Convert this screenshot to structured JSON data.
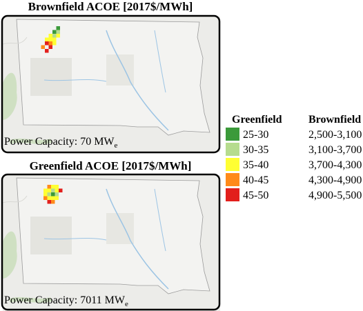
{
  "panels": [
    {
      "title": "Brownfield ACOE [2017$/MWh]",
      "capacity": {
        "label": "Power Capacity: 70 MW",
        "subscript": "e"
      }
    },
    {
      "title": "Greenfield ACOE [2017$/MWh]",
      "capacity": {
        "label": "Power Capacity: 7011 MW",
        "subscript": "e"
      }
    }
  ],
  "legend": {
    "headers": [
      "Greenfield",
      "Brownfield"
    ],
    "rows": [
      {
        "color": "#3b9a3a",
        "greenfield": "25-30",
        "brownfield": "2,500-3,100"
      },
      {
        "color": "#b6dc8e",
        "greenfield": "30-35",
        "brownfield": "3,100-3,700"
      },
      {
        "color": "#ffff33",
        "greenfield": "35-40",
        "brownfield": "3,700-4,300"
      },
      {
        "color": "#ff8a1a",
        "greenfield": "40-45",
        "brownfield": "4,300-4,900"
      },
      {
        "color": "#e21f1c",
        "greenfield": "45-50",
        "brownfield": "4,900-5,500"
      }
    ]
  }
}
